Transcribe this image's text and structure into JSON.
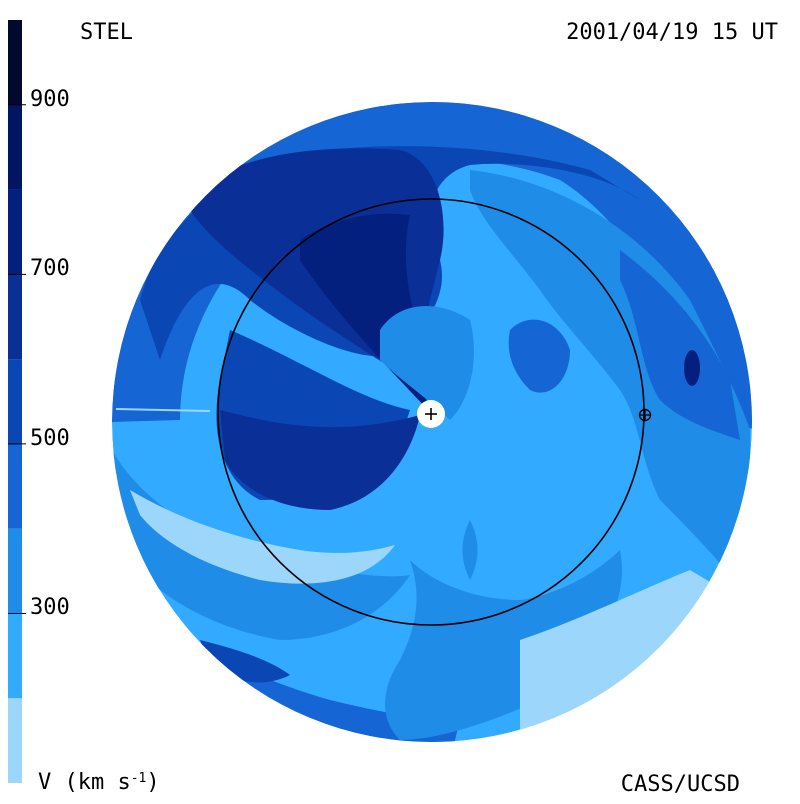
{
  "header": {
    "source": "STEL",
    "datetime": "2001/04/19 15 UT"
  },
  "footer": {
    "credit": "CASS/UCSD",
    "unit_prefix": "V (km s",
    "unit_exponent": "-1",
    "unit_suffix": ")"
  },
  "chart_data": {
    "type": "heatmap",
    "title": "",
    "quantity": "V (km s-1)",
    "colorbar": {
      "range": [
        100,
        1000
      ],
      "ticks": [
        300,
        500,
        700,
        900
      ],
      "tick_labels": [
        "300",
        "500",
        "700",
        "900"
      ],
      "levels": [
        {
          "from": 100,
          "to": 200,
          "color": "#9dd6fb"
        },
        {
          "from": 200,
          "to": 300,
          "color": "#32aaff"
        },
        {
          "from": 300,
          "to": 400,
          "color": "#1f8ce8"
        },
        {
          "from": 400,
          "to": 500,
          "color": "#1565d4"
        },
        {
          "from": 500,
          "to": 600,
          "color": "#0a46b4"
        },
        {
          "from": 600,
          "to": 700,
          "color": "#0a2f97"
        },
        {
          "from": 700,
          "to": 800,
          "color": "#04207e"
        },
        {
          "from": 800,
          "to": 900,
          "color": "#021562"
        },
        {
          "from": 900,
          "to": 1000,
          "color": "#010a2e"
        }
      ]
    },
    "markers": {
      "sun": "+",
      "earth": "⊕",
      "earth_orbit": "circle"
    }
  }
}
